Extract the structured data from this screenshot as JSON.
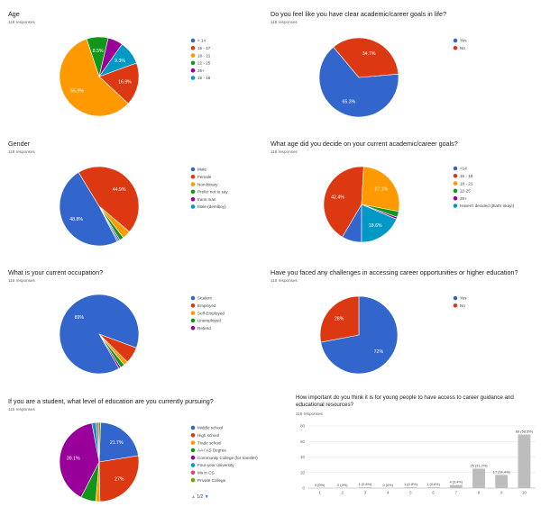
{
  "chart_data": [
    {
      "id": "age",
      "type": "pie",
      "title": "Age",
      "responses": "118 responses",
      "labels": [
        "< 14",
        "15 - 17",
        "18 - 21",
        "22 - 25",
        "26+",
        "15 - 18"
      ],
      "colors": [
        "#3366cc",
        "#dc3912",
        "#ff9900",
        "#109618",
        "#990099",
        "#0099c6"
      ],
      "values": [
        0,
        16.9,
        55.9,
        8.5,
        5.9,
        9.3
      ],
      "labels_shown": [
        "",
        "16.9%",
        "55.9%",
        "8.5%",
        "",
        "9.3%"
      ]
    },
    {
      "id": "goals",
      "type": "pie",
      "title": "Do you feel like you have clear academic/career goals in life?",
      "responses": "118 responses",
      "labels": [
        "Yes",
        "No"
      ],
      "colors": [
        "#3366cc",
        "#dc3912"
      ],
      "values": [
        65.3,
        34.7
      ],
      "labels_shown": [
        "65.3%",
        "34.7%"
      ]
    },
    {
      "id": "gender",
      "type": "pie",
      "title": "Gender",
      "responses": "118 responses",
      "labels": [
        "Male",
        "Female",
        "Non-binary",
        "Prefer not to say",
        "trans man",
        "Male (demiboy)"
      ],
      "colors": [
        "#3366cc",
        "#dc3912",
        "#ff9900",
        "#109618",
        "#990099",
        "#0099c6"
      ],
      "values": [
        48.8,
        44.9,
        3.4,
        1.7,
        0.6,
        0.6
      ],
      "labels_shown": [
        "48.8%",
        "44.9%",
        "",
        "",
        "",
        ""
      ]
    },
    {
      "id": "decide_age",
      "type": "pie",
      "title": "What age did you decide on your current academic/career goals?",
      "responses": "118 responses",
      "labels": [
        "<14",
        "15 - 18",
        "18 - 21",
        "22-25",
        "26+",
        "Haven't decided (that's okay!)"
      ],
      "colors": [
        "#3366cc",
        "#dc3912",
        "#ff9900",
        "#109618",
        "#990099",
        "#0099c6"
      ],
      "values": [
        8.5,
        42.4,
        27.1,
        2.5,
        0.9,
        18.6
      ],
      "labels_shown": [
        "",
        "42.4%",
        "27.1%",
        "",
        "",
        "18.6%"
      ]
    },
    {
      "id": "occupation",
      "type": "pie",
      "title": "What is your current occupation?",
      "responses": "118 responses",
      "labels": [
        "Student",
        "Employed",
        "Self-Employed",
        "Unemployed",
        "Retired"
      ],
      "colors": [
        "#3366cc",
        "#dc3912",
        "#ff9900",
        "#109618",
        "#990099"
      ],
      "values": [
        89,
        6.8,
        1.7,
        1.7,
        0.8
      ],
      "labels_shown": [
        "89%",
        "",
        "",
        "",
        ""
      ]
    },
    {
      "id": "challenges",
      "type": "pie",
      "title": "Have you faced any challenges in accessing career opportunities or higher education?",
      "responses": "118 responses",
      "labels": [
        "Yes",
        "No"
      ],
      "colors": [
        "#3366cc",
        "#dc3912"
      ],
      "values": [
        72,
        28
      ],
      "labels_shown": [
        "72%",
        "28%"
      ]
    },
    {
      "id": "education",
      "type": "pie",
      "title": "If you are a student, what level of education are you currently pursuing?",
      "responses": "115 responses",
      "labels": [
        "Middle school",
        "High school",
        "Trade school",
        "AA / AS Degree",
        "Community College (for transfer)",
        "Four-year university",
        "Ms in CS",
        "Private College"
      ],
      "colors": [
        "#3366cc",
        "#dc3912",
        "#ff9900",
        "#109618",
        "#990099",
        "#0099c6",
        "#dd4477",
        "#66aa00"
      ],
      "values": [
        21.7,
        27,
        1.7,
        6.1,
        39.1,
        1.7,
        0.9,
        0.9
      ],
      "labels_shown": [
        "21.7%",
        "27%",
        "",
        "",
        "39.1%",
        "",
        "",
        ""
      ],
      "pager": "1/2"
    },
    {
      "id": "importance",
      "type": "bar",
      "title": "How important do you think it is for young people to have access to career guidance and educational resources?",
      "responses": "118 responses",
      "categories": [
        "1",
        "2",
        "3",
        "4",
        "5",
        "6",
        "7",
        "8",
        "9",
        "10"
      ],
      "values": [
        0,
        0,
        1,
        0,
        1,
        1,
        4,
        25,
        17,
        69
      ],
      "data_labels": [
        "0 (0%)",
        "0 (0%)",
        "1 (0.8%)",
        "0 (0%)",
        "1 (0.8%)",
        "1 (0.8%)",
        "4 (3.4%)",
        "25 (21.2%)",
        "17 (14.4%)",
        "69 (58.5%)"
      ],
      "ylim": [
        0,
        80
      ],
      "yticks": [
        "0",
        "20",
        "40",
        "60",
        "80"
      ],
      "bar_color": "#bdbdbd",
      "grid": true
    }
  ]
}
